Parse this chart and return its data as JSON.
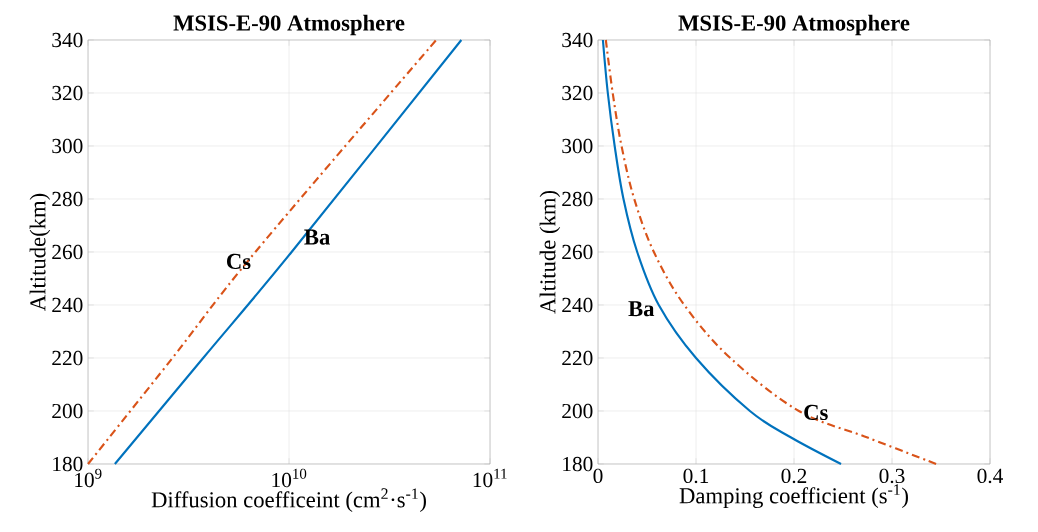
{
  "chart_data": [
    {
      "type": "line",
      "title": "MSIS-E-90 Atmosphere",
      "xlabel": "Diffusion coefficeint (cm$^{2}$·s$^{-1}$)",
      "ylabel": "Altitude(km)",
      "log": "x",
      "grid": true,
      "xlim": [
        1000000000.0,
        100000000000.0
      ],
      "xticks": [
        {
          "value": 1000000000.0,
          "label": "10$^{9}$"
        },
        {
          "value": 10000000000.0,
          "label": "10$^{10}$"
        },
        {
          "value": 100000000000.0,
          "label": "10$^{11}$"
        }
      ],
      "ylim": [
        180,
        340
      ],
      "yticks": [
        180,
        200,
        220,
        240,
        260,
        280,
        300,
        320,
        340
      ],
      "series": [
        {
          "name": "Ba",
          "color": "#0072bd",
          "line_style": "solid",
          "x": [
            1360000000.0,
            3740000000.0,
            10300000000.0,
            72000000000.0
          ],
          "values": [
            180,
            220,
            260,
            340
          ]
        },
        {
          "name": "Cs",
          "color": "#d95319",
          "line_style": "dashed",
          "x": [
            1000000000.0,
            2630000000.0,
            6800000000.0,
            54000000000.0
          ],
          "values": [
            180,
            220,
            260,
            340
          ]
        }
      ]
    },
    {
      "type": "line",
      "title": "MSIS-E-90 Atmosphere",
      "xlabel": "Damping coefficient (s$^{-1}$)",
      "ylabel": "Altitude (km)",
      "grid": true,
      "xlim": [
        0,
        0.4
      ],
      "xticks": [
        0,
        0.1,
        0.2,
        0.3,
        0.4
      ],
      "ylim": [
        180,
        340
      ],
      "yticks": [
        180,
        200,
        220,
        240,
        260,
        280,
        300,
        320,
        340
      ],
      "series": [
        {
          "name": "Ba",
          "color": "#0072bd",
          "line_style": "solid",
          "x": [
            0.248,
            0.197,
            0.155,
            0.1,
            0.062,
            0.04,
            0.026,
            0.017,
            0.01,
            0.005
          ],
          "values": [
            180,
            190,
            200,
            220,
            240,
            260,
            280,
            300,
            320,
            340
          ]
        },
        {
          "name": "Cs",
          "color": "#d95319",
          "line_style": "dashed",
          "x": [
            0.345,
            0.275,
            0.205,
            0.135,
            0.088,
            0.057,
            0.037,
            0.024,
            0.015,
            0.008
          ],
          "values": [
            180,
            190,
            200,
            220,
            240,
            260,
            280,
            300,
            320,
            340
          ]
        }
      ]
    }
  ]
}
